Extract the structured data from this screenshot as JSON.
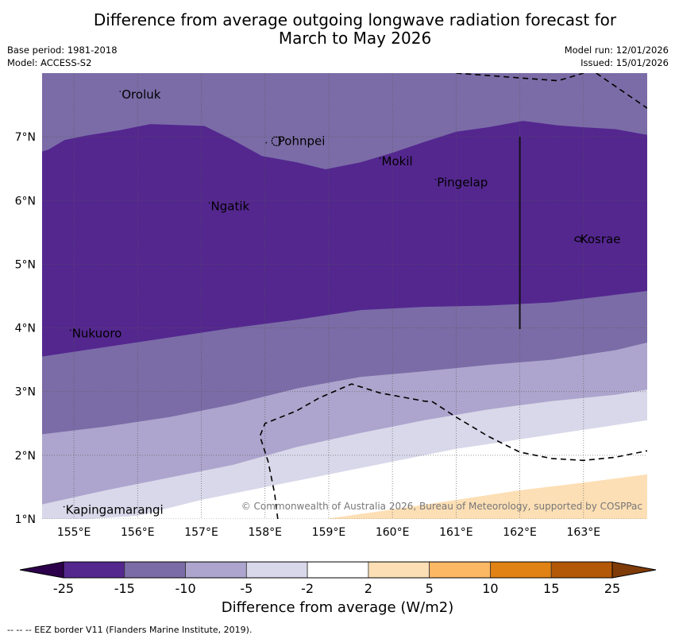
{
  "title": {
    "line1": "Difference from average outgoing longwave radiation forecast for",
    "line2": "March to May 2026"
  },
  "meta": {
    "base_period": "Base period: 1981-2018",
    "model": "Model: ACCESS-S2",
    "model_run": "Model run: 12/01/2026",
    "issued": "Issued: 15/01/2026"
  },
  "map": {
    "extent": {
      "lon": [
        154.5,
        164.0
      ],
      "lat": [
        1.0,
        8.0
      ]
    },
    "lon_ticks": [
      155,
      156,
      157,
      158,
      159,
      160,
      161,
      162,
      163
    ],
    "lon_tick_labels": [
      "155°E",
      "156°E",
      "157°E",
      "158°E",
      "159°E",
      "160°E",
      "161°E",
      "162°E",
      "163°E"
    ],
    "lat_ticks": [
      1,
      2,
      3,
      4,
      5,
      6,
      7
    ],
    "lat_tick_labels": [
      "1°N",
      "2°N",
      "3°N",
      "4°N",
      "5°N",
      "6°N",
      "7°N"
    ],
    "gridlines": true,
    "islands": [
      {
        "name": "Oroluk",
        "lon": 155.75,
        "lat": 7.6
      },
      {
        "name": "Pohnpei",
        "lon": 158.2,
        "lat": 6.87
      },
      {
        "name": "Mokil",
        "lon": 159.83,
        "lat": 6.55
      },
      {
        "name": "Pingelap",
        "lon": 160.7,
        "lat": 6.22
      },
      {
        "name": "Ngatik",
        "lon": 157.15,
        "lat": 5.85
      },
      {
        "name": "Kosrae",
        "lon": 162.95,
        "lat": 5.33
      },
      {
        "name": "Nukuoro",
        "lon": 154.97,
        "lat": 3.85
      },
      {
        "name": "Kapingamarangi",
        "lon": 154.87,
        "lat": 1.08
      }
    ],
    "contour_bands": [
      {
        "range": "-25 to -15",
        "color": "#54278f",
        "upper": [
          [
            154.5,
            6.77
          ],
          [
            154.6,
            6.8
          ],
          [
            154.85,
            6.95
          ],
          [
            155.2,
            7.02
          ],
          [
            155.7,
            7.1
          ],
          [
            156.2,
            7.2
          ],
          [
            157.05,
            7.17
          ],
          [
            157.5,
            6.95
          ],
          [
            157.95,
            6.7
          ],
          [
            158.5,
            6.6
          ],
          [
            158.95,
            6.49
          ],
          [
            159.5,
            6.6
          ],
          [
            160.0,
            6.75
          ],
          [
            160.5,
            6.92
          ],
          [
            161.0,
            7.08
          ],
          [
            161.5,
            7.15
          ],
          [
            162.05,
            7.25
          ],
          [
            162.6,
            7.18
          ],
          [
            163.0,
            7.15
          ],
          [
            163.5,
            7.12
          ],
          [
            164.0,
            7.03
          ]
        ],
        "lower": [
          [
            154.5,
            3.55
          ],
          [
            155.5,
            3.7
          ],
          [
            156.5,
            3.85
          ],
          [
            157.5,
            4.0
          ],
          [
            158.5,
            4.13
          ],
          [
            159.5,
            4.28
          ],
          [
            160.5,
            4.33
          ],
          [
            161.5,
            4.35
          ],
          [
            162.5,
            4.4
          ],
          [
            163.5,
            4.52
          ],
          [
            164.0,
            4.58
          ]
        ]
      },
      {
        "range": "-15 to -10",
        "color": "#7b6ca7",
        "lower": [
          [
            154.5,
            2.33
          ],
          [
            155.5,
            2.45
          ],
          [
            156.5,
            2.6
          ],
          [
            157.5,
            2.8
          ],
          [
            158.5,
            3.05
          ],
          [
            159.5,
            3.23
          ],
          [
            160.5,
            3.32
          ],
          [
            161.5,
            3.42
          ],
          [
            162.5,
            3.5
          ],
          [
            163.5,
            3.65
          ],
          [
            164.0,
            3.77
          ]
        ]
      },
      {
        "range": "-10 to -5",
        "color": "#ada5cd",
        "lower": [
          [
            154.5,
            1.23
          ],
          [
            155.5,
            1.45
          ],
          [
            156.5,
            1.65
          ],
          [
            157.5,
            1.85
          ],
          [
            158.5,
            2.13
          ],
          [
            159.5,
            2.35
          ],
          [
            160.5,
            2.55
          ],
          [
            161.5,
            2.72
          ],
          [
            162.5,
            2.85
          ],
          [
            163.5,
            2.95
          ],
          [
            164.0,
            3.03
          ]
        ]
      },
      {
        "range": "-5 to -2",
        "color": "#d9d8ea",
        "lower": [
          [
            154.5,
            0.95
          ],
          [
            156.0,
            1.05
          ],
          [
            157.0,
            1.3
          ],
          [
            158.0,
            1.5
          ],
          [
            159.0,
            1.7
          ],
          [
            160.0,
            1.9
          ],
          [
            161.0,
            2.1
          ],
          [
            162.0,
            2.25
          ],
          [
            163.0,
            2.4
          ],
          [
            164.0,
            2.55
          ]
        ]
      },
      {
        "range": "-2 to 2",
        "color": "#ffffff"
      },
      {
        "range": "2 to 5",
        "color": "#fddfb5",
        "upper": [
          [
            158.95,
            1.0
          ],
          [
            160.0,
            1.15
          ],
          [
            161.0,
            1.3
          ],
          [
            162.0,
            1.45
          ],
          [
            163.0,
            1.57
          ],
          [
            164.0,
            1.7
          ]
        ]
      }
    ],
    "eez_borders": [
      [
        [
          161.0,
          8.0
        ],
        [
          162.6,
          7.88
        ],
        [
          163.0,
          8.0
        ]
      ],
      [
        [
          163.2,
          8.0
        ],
        [
          164.0,
          7.45
        ]
      ],
      [
        [
          158.2,
          1.0
        ],
        [
          158.15,
          1.4
        ],
        [
          158.05,
          1.9
        ],
        [
          157.92,
          2.3
        ],
        [
          158.0,
          2.5
        ],
        [
          158.5,
          2.7
        ],
        [
          158.85,
          2.9
        ],
        [
          159.36,
          3.12
        ],
        [
          159.8,
          2.98
        ],
        [
          160.5,
          2.85
        ],
        [
          160.63,
          2.84
        ],
        [
          161.0,
          2.6
        ],
        [
          161.5,
          2.3
        ],
        [
          162.0,
          2.05
        ],
        [
          162.5,
          1.95
        ],
        [
          163.0,
          1.92
        ],
        [
          163.5,
          1.97
        ],
        [
          164.0,
          2.07
        ]
      ]
    ],
    "transect_line": {
      "lon": 162.0,
      "lat_from": 7.0,
      "lat_to": 3.98
    },
    "copyright": "© Commonwealth of Australia 2026, Bureau of Meteorology, supported by COSPPac"
  },
  "colorbar": {
    "label": "Difference from average (W/m2)",
    "boundaries": [
      "-25",
      "-15",
      "-10",
      "-5",
      "-2",
      "2",
      "5",
      "10",
      "15",
      "25"
    ],
    "colors": [
      "#54278f",
      "#7b6ca7",
      "#ada5cd",
      "#d9d8ea",
      "#ffffff",
      "#fddfb5",
      "#fdb863",
      "#e08214",
      "#b35806"
    ],
    "extend_min_color": "#2d004b",
    "extend_max_color": "#7f3b08"
  },
  "footnote": "--  --  -- EEZ border V11 (Flanders Marine Institute, 2019)."
}
